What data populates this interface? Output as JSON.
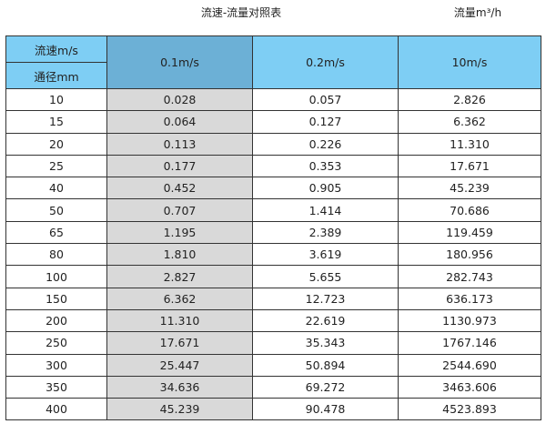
{
  "title": "流速-流量对照表",
  "unit_label": "流量m³/h",
  "colors": {
    "header": "#7ecef4",
    "header_highlight": "#6cb0d6",
    "column_highlight": "#d9d9d9"
  },
  "table": {
    "corner_top": "流速m/s",
    "corner_bottom": "通径mm",
    "columns": [
      "0.1m/s",
      "0.2m/s",
      "10m/s"
    ],
    "rows": [
      [
        "10",
        "0.028",
        "0.057",
        "2.826"
      ],
      [
        "15",
        "0.064",
        "0.127",
        "6.362"
      ],
      [
        "20",
        "0.113",
        "0.226",
        "11.310"
      ],
      [
        "25",
        "0.177",
        "0.353",
        "17.671"
      ],
      [
        "40",
        "0.452",
        "0.905",
        "45.239"
      ],
      [
        "50",
        "0.707",
        "1.414",
        "70.686"
      ],
      [
        "65",
        "1.195",
        "2.389",
        "119.459"
      ],
      [
        "80",
        "1.810",
        "3.619",
        "180.956"
      ],
      [
        "100",
        "2.827",
        "5.655",
        "282.743"
      ],
      [
        "150",
        "6.362",
        "12.723",
        "636.173"
      ],
      [
        "200",
        "11.310",
        "22.619",
        "1130.973"
      ],
      [
        "250",
        "17.671",
        "35.343",
        "1767.146"
      ],
      [
        "300",
        "25.447",
        "50.894",
        "2544.690"
      ],
      [
        "350",
        "34.636",
        "69.272",
        "3463.606"
      ],
      [
        "400",
        "45.239",
        "90.478",
        "4523.893"
      ]
    ]
  }
}
